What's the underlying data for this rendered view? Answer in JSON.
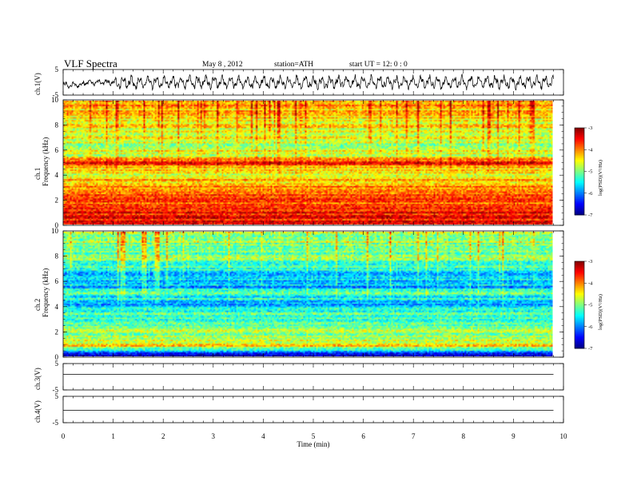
{
  "header": {
    "title": "VLF  Spectra",
    "date": "May 8  , 2012",
    "station": "station=ATH",
    "start": "start  UT  =    12: 0   : 0"
  },
  "chart_data": {
    "type": "heatmap",
    "title": "VLF  Spectra",
    "xlabel": "Time  (min)",
    "xlim": [
      0,
      10
    ],
    "x_ticks": [
      "0",
      "1",
      "2",
      "3",
      "4",
      "5",
      "6",
      "7",
      "8",
      "9",
      "10"
    ],
    "data_end_min": 9.8,
    "panels": [
      {
        "id": "ch1-waveform",
        "type": "line",
        "ylabel": "ch.1(V)",
        "ylim": [
          -5,
          5
        ],
        "y_ticks": [
          "5",
          "-5"
        ],
        "description_series": "noisy oscillating waveform, quieter first minute"
      },
      {
        "id": "ch1-spectrogram",
        "type": "heatmap",
        "ylabel_line1": "ch.1",
        "ylabel_line2": "Frequency  (kHz)",
        "ylim": [
          0,
          10
        ],
        "y_ticks": [
          "0",
          "2",
          "4",
          "6",
          "8",
          "10"
        ],
        "colorbar": {
          "label": "log(PSD)(V²/Hz)",
          "range": [
            -7,
            -3
          ],
          "ticks": [
            "-3",
            "-4",
            "-5",
            "-6",
            "-7"
          ]
        },
        "level_profile_by_khz": [
          {
            "f": 0.0,
            "v": -3.4
          },
          {
            "f": 0.5,
            "v": -3.5
          },
          {
            "f": 1.0,
            "v": -3.6
          },
          {
            "f": 2.0,
            "v": -3.8
          },
          {
            "f": 3.0,
            "v": -3.9
          },
          {
            "f": 4.0,
            "v": -4.6
          },
          {
            "f": 4.6,
            "v": -4.2
          },
          {
            "f": 5.0,
            "v": -3.5
          },
          {
            "f": 5.5,
            "v": -4.7
          },
          {
            "f": 6.5,
            "v": -4.8
          },
          {
            "f": 8.0,
            "v": -4.5
          },
          {
            "f": 10.0,
            "v": -4.2
          }
        ]
      },
      {
        "id": "ch2-spectrogram",
        "type": "heatmap",
        "ylabel_line1": "ch.2",
        "ylabel_line2": "Frequency  (kHz)",
        "ylim": [
          0,
          10
        ],
        "y_ticks": [
          "0",
          "2",
          "4",
          "6",
          "8",
          "10"
        ],
        "colorbar": {
          "label": "log(PSD)(V²/Hz)",
          "range": [
            -7,
            -3
          ],
          "ticks": [
            "-3",
            "-4",
            "-5",
            "-6",
            "-7"
          ]
        },
        "level_profile_by_khz": [
          {
            "f": 0.0,
            "v": -6.6
          },
          {
            "f": 0.3,
            "v": -6.2
          },
          {
            "f": 0.8,
            "v": -4.4
          },
          {
            "f": 1.5,
            "v": -4.8
          },
          {
            "f": 3.0,
            "v": -5.1
          },
          {
            "f": 4.3,
            "v": -5.8
          },
          {
            "f": 5.0,
            "v": -5.2
          },
          {
            "f": 5.6,
            "v": -5.7
          },
          {
            "f": 6.5,
            "v": -5.6
          },
          {
            "f": 8.0,
            "v": -5.0
          },
          {
            "f": 10.0,
            "v": -4.8
          }
        ]
      },
      {
        "id": "ch3-waveform",
        "type": "line",
        "ylabel": "ch.3(V)",
        "ylim": [
          -5,
          5
        ],
        "y_ticks": [
          "5",
          "-5"
        ],
        "description_series": "flat trace near 0 V"
      },
      {
        "id": "ch4-waveform",
        "type": "line",
        "ylabel": "ch.4(V)",
        "ylim": [
          -5,
          5
        ],
        "y_ticks": [
          "5",
          "-5"
        ],
        "description_series": "flat trace near 0 V"
      }
    ]
  }
}
